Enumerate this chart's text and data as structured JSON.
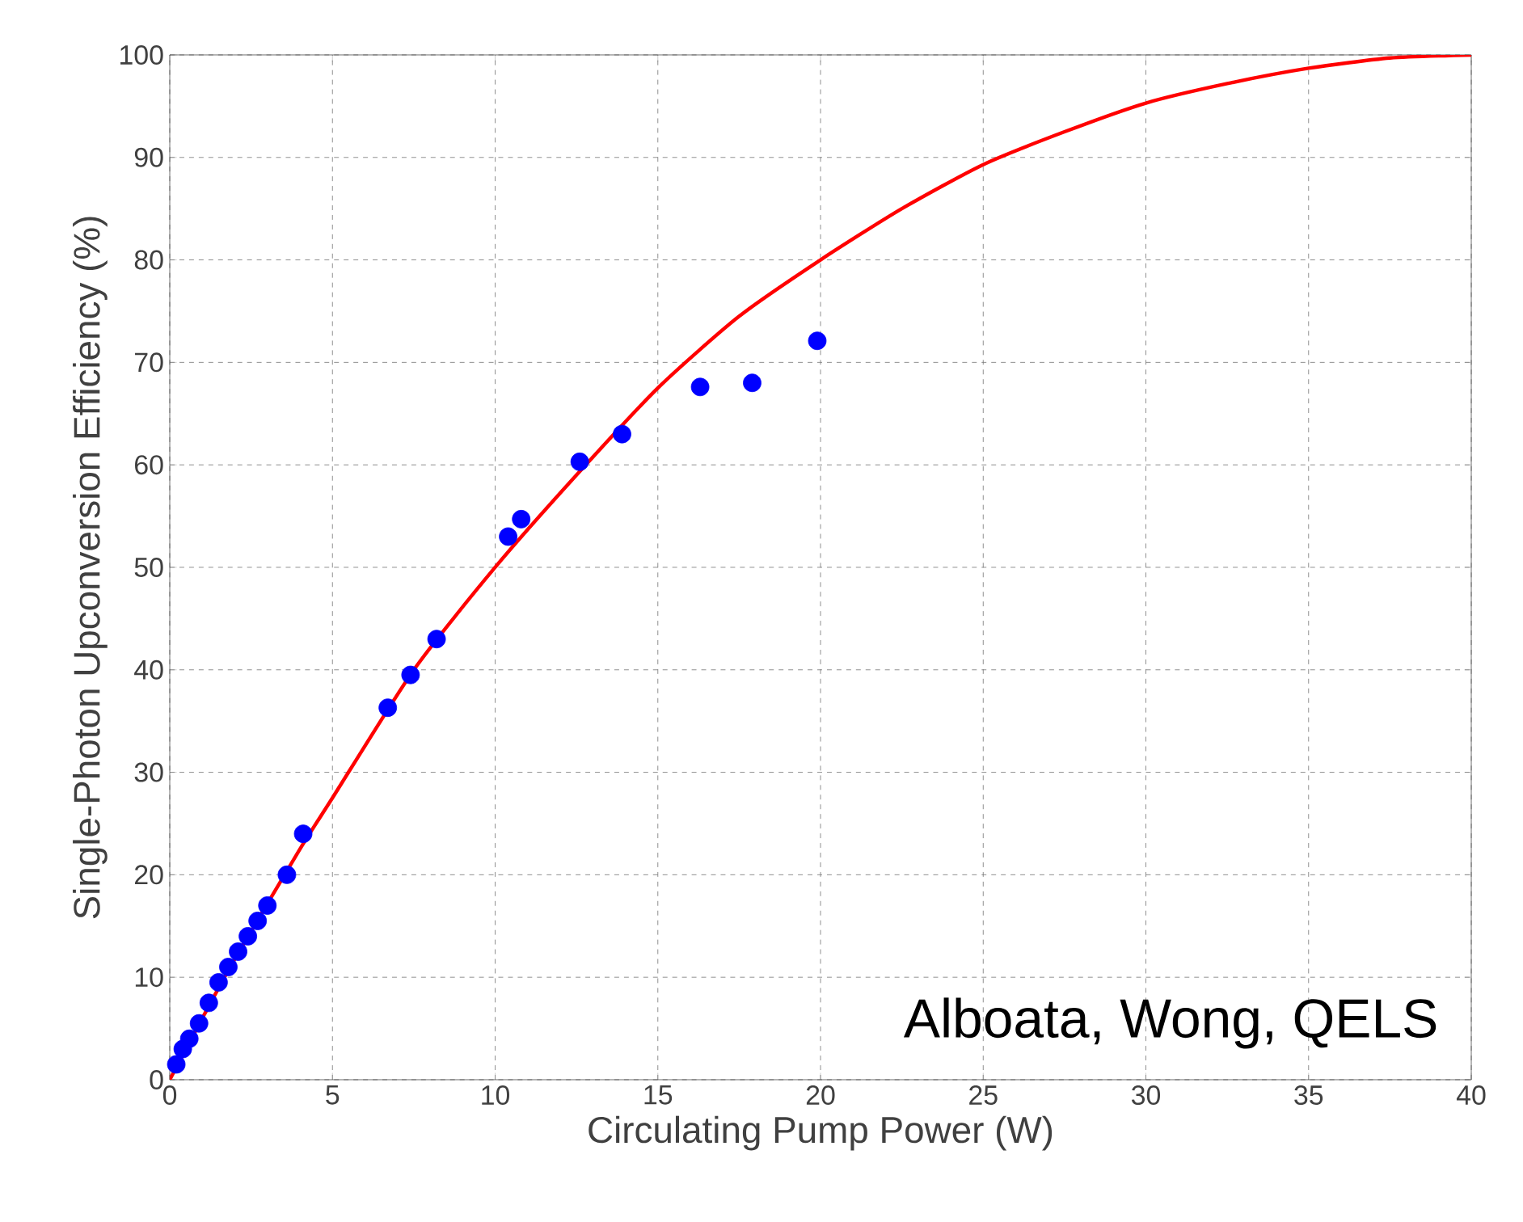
{
  "chart_data": {
    "type": "scatter",
    "xlabel": "Circulating Pump Power (W)",
    "ylabel": "Single-Photon Upconversion Efficiency (%)",
    "annotations": [
      "Alboata, Wong, QELS"
    ],
    "series": [
      {
        "color": "#0000ff",
        "marker": "circle",
        "x": [
          0.2,
          0.4,
          0.6,
          0.9,
          1.2,
          1.5,
          1.8,
          2.1,
          2.4,
          2.7,
          3.0,
          3.6,
          4.1,
          6.7,
          7.4,
          8.2,
          10.4,
          10.8,
          12.6,
          13.9,
          16.3,
          17.9,
          19.9
        ],
        "values": [
          1.5,
          3,
          4,
          5.5,
          7.5,
          9.5,
          11,
          12.5,
          14,
          15.5,
          17,
          20,
          24,
          36.3,
          39.5,
          43,
          53,
          54.7,
          60.3,
          63,
          67.6,
          68,
          72.1
        ]
      },
      {
        "type": "line",
        "color": "#ff0000",
        "line_style": "solid",
        "x": [
          0,
          1,
          2,
          4,
          5,
          7.5,
          10,
          12.5,
          15,
          17.5,
          20,
          22.5,
          25,
          27.5,
          30,
          32.5,
          35,
          37.5,
          40
        ],
        "values": [
          0,
          6,
          11.8,
          22.5,
          27.5,
          40,
          50,
          59,
          67.5,
          74.5,
          80,
          85,
          89.3,
          92.5,
          95.3,
          97.2,
          98.7,
          99.7,
          100
        ]
      }
    ],
    "xlim": [
      0,
      40
    ],
    "ylim": [
      0,
      100
    ],
    "xticks": [
      0,
      5,
      10,
      15,
      20,
      25,
      30,
      35,
      40
    ],
    "yticks": [
      0,
      10,
      20,
      30,
      40,
      50,
      60,
      70,
      80,
      90,
      100
    ],
    "grid": true
  }
}
